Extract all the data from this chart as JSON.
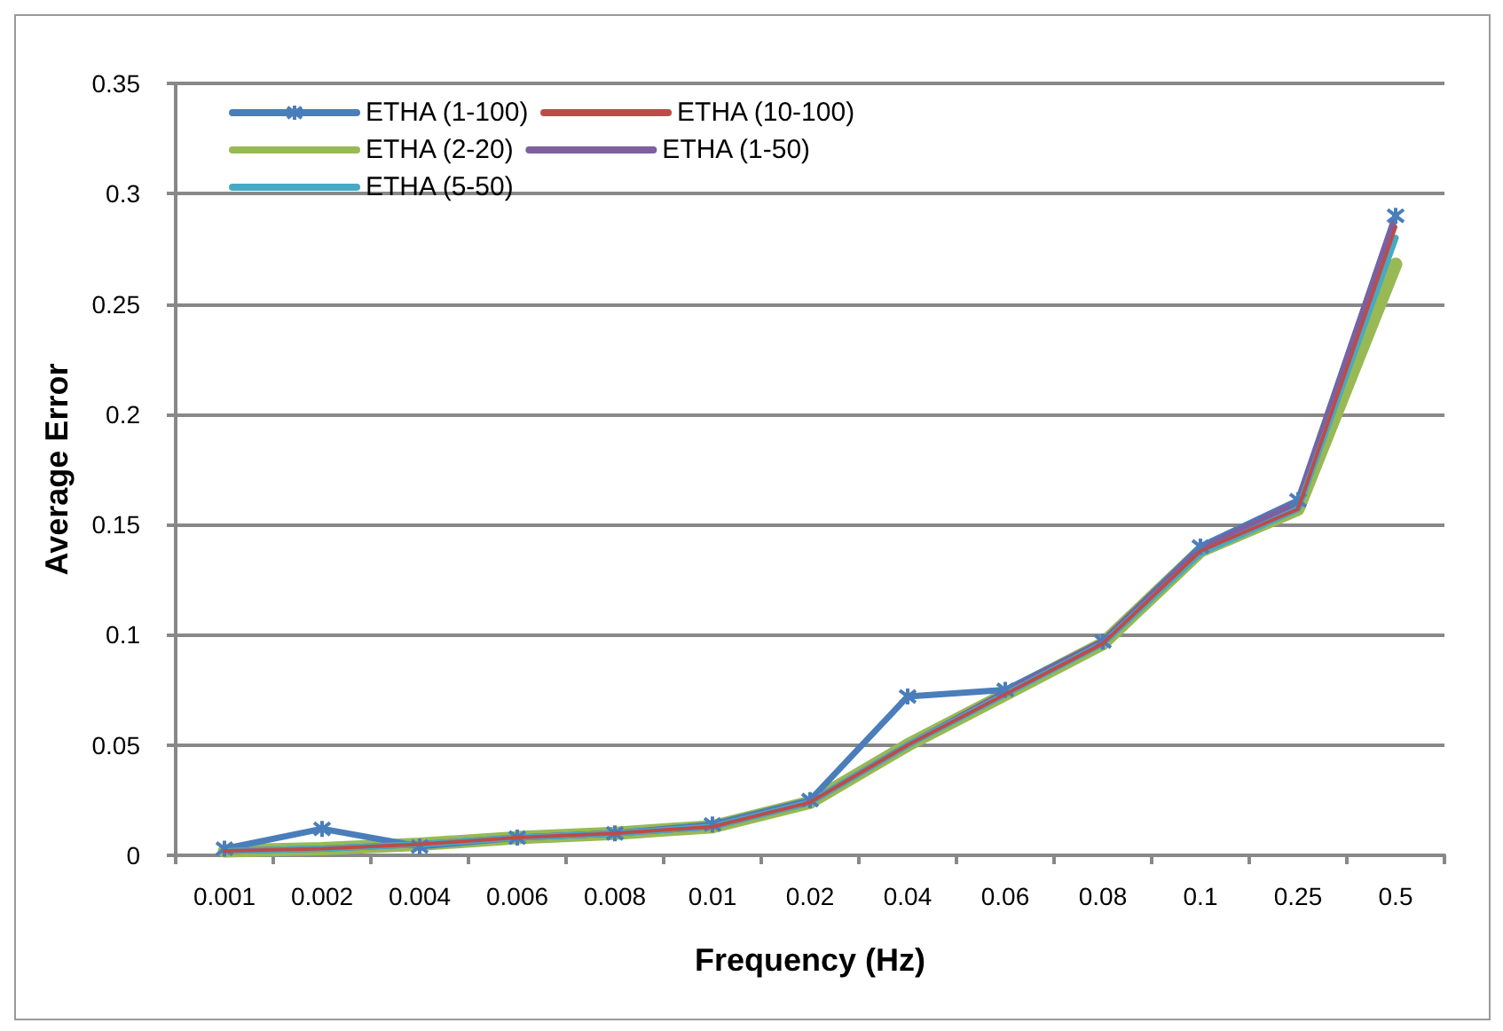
{
  "chart_data": {
    "type": "line",
    "xlabel": "Frequency (Hz)",
    "ylabel": "Average Error",
    "categories": [
      "0.001",
      "0.002",
      "0.004",
      "0.006",
      "0.008",
      "0.01",
      "0.02",
      "0.04",
      "0.06",
      "0.08",
      "0.1",
      "0.25",
      "0.5"
    ],
    "series": [
      {
        "name": "ETHA (1-100)",
        "color": "#4a7ebb",
        "marker": "cross",
        "values": [
          0.003,
          0.012,
          0.004,
          0.008,
          0.01,
          0.014,
          0.025,
          0.072,
          0.075,
          0.097,
          0.14,
          0.161,
          0.29
        ]
      },
      {
        "name": "ETHA (10-100)",
        "color": "#be4b48",
        "values": [
          0.002,
          0.003,
          0.005,
          0.008,
          0.01,
          0.013,
          0.024,
          0.05,
          0.073,
          0.096,
          0.138,
          0.157,
          0.285
        ]
      },
      {
        "name": "ETHA (2-20)",
        "color": "#98b954",
        "values": [
          0.002,
          0.003,
          0.005,
          0.008,
          0.01,
          0.013,
          0.024,
          0.05,
          0.073,
          0.096,
          0.138,
          0.157,
          0.268
        ]
      },
      {
        "name": "ETHA (1-50)",
        "color": "#7d60a0",
        "values": [
          0.002,
          0.003,
          0.005,
          0.008,
          0.01,
          0.013,
          0.024,
          0.05,
          0.074,
          0.097,
          0.139,
          0.16,
          0.29
        ]
      },
      {
        "name": "ETHA (5-50)",
        "color": "#46aac5",
        "values": [
          0.002,
          0.003,
          0.005,
          0.008,
          0.01,
          0.013,
          0.024,
          0.05,
          0.073,
          0.096,
          0.137,
          0.157,
          0.28
        ]
      }
    ],
    "ylim": [
      0,
      0.35
    ],
    "yticks": [
      0,
      0.05,
      0.1,
      0.15,
      0.2,
      0.25,
      0.3,
      0.35
    ],
    "grid": "y",
    "legend": "top left"
  }
}
